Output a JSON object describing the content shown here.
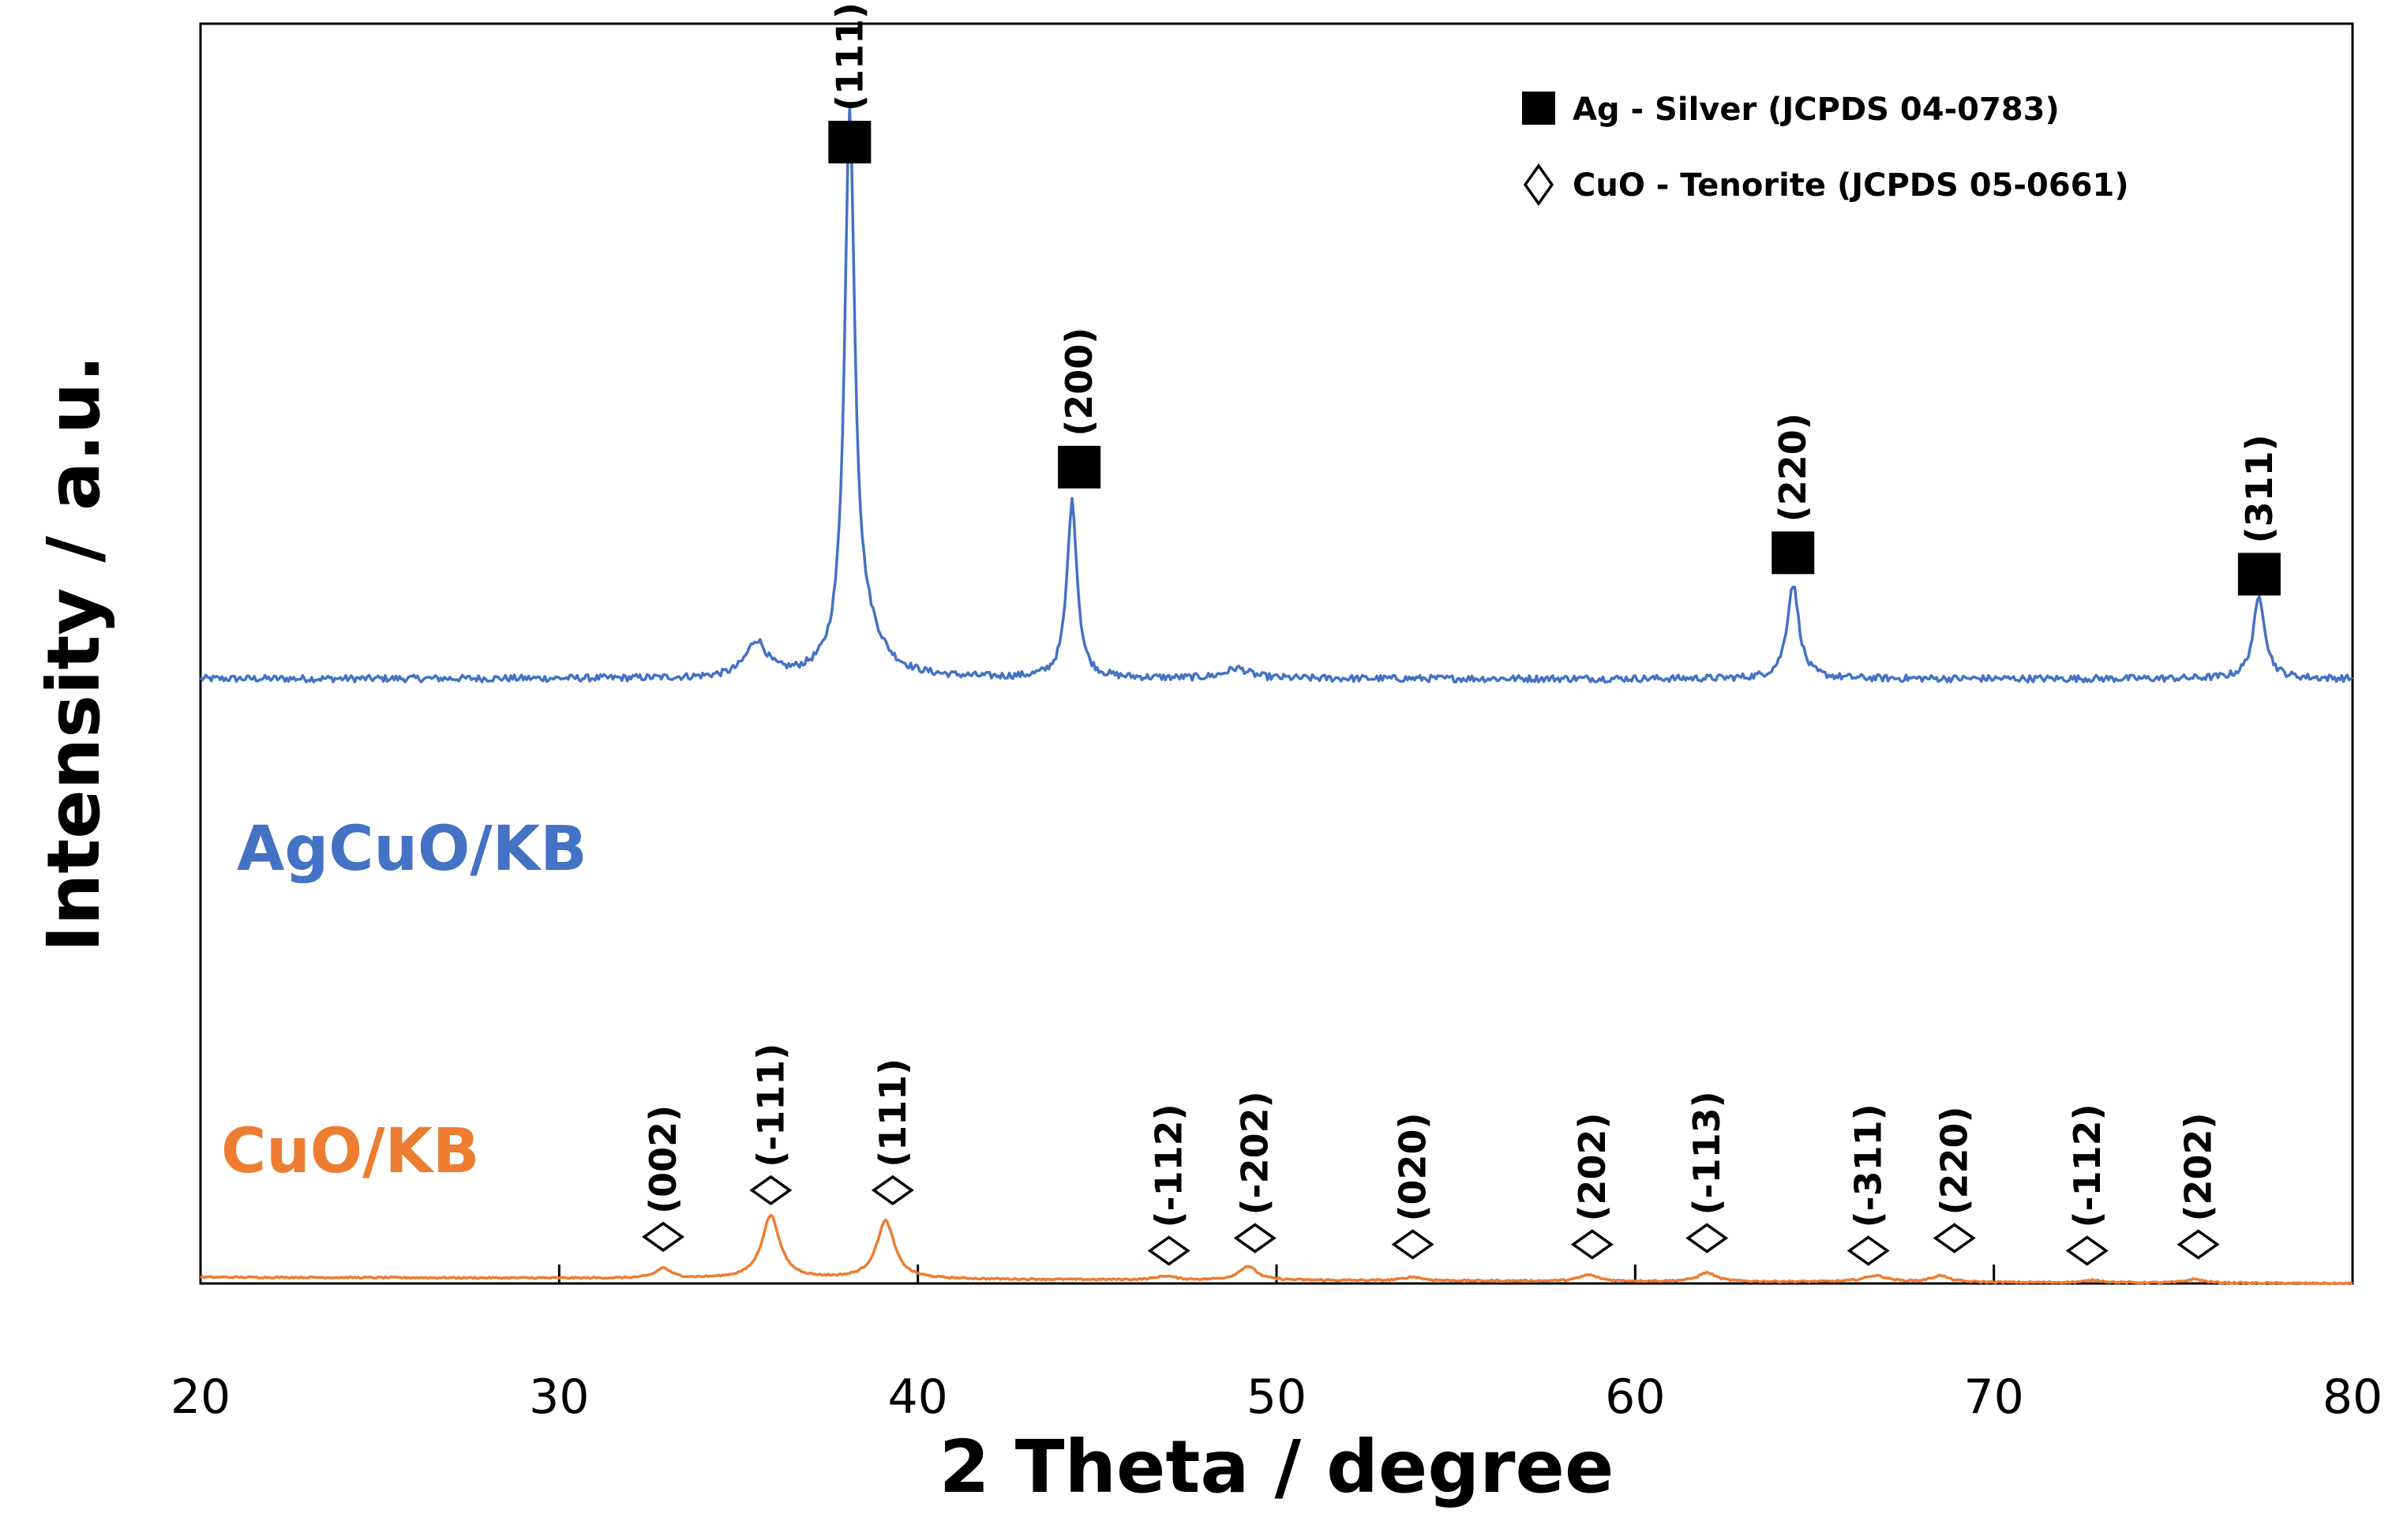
{
  "chart_data": {
    "type": "line",
    "title": "",
    "xlabel": "2 Theta / degree",
    "ylabel": "Intensity / a.u.",
    "xlim": [
      20,
      80
    ],
    "xticks": [
      20,
      30,
      40,
      50,
      60,
      70,
      80
    ],
    "yticks": [],
    "ylim": [
      0,
      100
    ],
    "grid": false,
    "legend_position": "top-right",
    "legend": [
      {
        "marker": "square",
        "label": "Ag - Silver (JCPDS 04-0783)"
      },
      {
        "marker": "diamond",
        "label": "CuO - Tenorite (JCPDS 05-0661)"
      }
    ],
    "colors": {
      "ag_series": "#4472C4",
      "cu_series": "#ED7D31",
      "axis": "#000000"
    },
    "series": [
      {
        "name": "AgCuO/KB",
        "color": "#4472C4",
        "baseline": 48,
        "peaks": [
          {
            "x": 35.5,
            "height": 2.8,
            "width": 0.35
          },
          {
            "x": 38.1,
            "height": 43,
            "width": 0.17
          },
          {
            "x": 38.5,
            "height": 3.2,
            "width": 0.6
          },
          {
            "x": 44.3,
            "height": 14,
            "width": 0.17
          },
          {
            "x": 48.9,
            "height": 0.8,
            "width": 0.4
          },
          {
            "x": 64.4,
            "height": 7.5,
            "width": 0.2
          },
          {
            "x": 77.4,
            "height": 6.5,
            "width": 0.2
          }
        ],
        "annotations": [
          {
            "x": 38.1,
            "label": "(111)",
            "phase": "Ag",
            "marker": "square",
            "level": 90.6
          },
          {
            "x": 44.5,
            "label": "(200)",
            "phase": "Ag",
            "marker": "square",
            "level": 64.8
          },
          {
            "x": 64.4,
            "label": "(220)",
            "phase": "Ag",
            "marker": "square",
            "level": 58
          },
          {
            "x": 77.4,
            "label": "(311)",
            "phase": "Ag",
            "marker": "square",
            "level": 56.3
          }
        ]
      },
      {
        "name": "CuO/KB",
        "color": "#ED7D31",
        "baseline": 0.5,
        "peaks": [
          {
            "x": 32.9,
            "height": 0.8,
            "width": 0.25
          },
          {
            "x": 35.9,
            "height": 5,
            "width": 0.3
          },
          {
            "x": 39.1,
            "height": 4.6,
            "width": 0.3
          },
          {
            "x": 46.9,
            "height": 0.3,
            "width": 0.3
          },
          {
            "x": 49.2,
            "height": 1.1,
            "width": 0.3
          },
          {
            "x": 53.8,
            "height": 0.3,
            "width": 0.3
          },
          {
            "x": 58.7,
            "height": 0.5,
            "width": 0.3
          },
          {
            "x": 62.0,
            "height": 0.7,
            "width": 0.3
          },
          {
            "x": 66.7,
            "height": 0.5,
            "width": 0.4
          },
          {
            "x": 68.5,
            "height": 0.5,
            "width": 0.3
          },
          {
            "x": 72.8,
            "height": 0.2,
            "width": 0.3
          },
          {
            "x": 75.6,
            "height": 0.3,
            "width": 0.3
          }
        ],
        "annotations": [
          {
            "x": 32.9,
            "label": "(002)",
            "phase": "CuO",
            "marker": "diamond",
            "level": 3.7
          },
          {
            "x": 35.9,
            "label": "(-111)",
            "phase": "CuO",
            "marker": "diamond",
            "level": 7.4
          },
          {
            "x": 39.3,
            "label": "(111)",
            "phase": "CuO",
            "marker": "diamond",
            "level": 7.4
          },
          {
            "x": 47.0,
            "label": "(-112)",
            "phase": "CuO",
            "marker": "diamond",
            "level": 2.6
          },
          {
            "x": 49.4,
            "label": "(-202)",
            "phase": "CuO",
            "marker": "diamond",
            "level": 3.6
          },
          {
            "x": 53.8,
            "label": "(020)",
            "phase": "CuO",
            "marker": "diamond",
            "level": 3.1
          },
          {
            "x": 58.8,
            "label": "(202)",
            "phase": "CuO",
            "marker": "diamond",
            "level": 3.1
          },
          {
            "x": 62.0,
            "label": "(-113)",
            "phase": "CuO",
            "marker": "diamond",
            "level": 3.6
          },
          {
            "x": 66.5,
            "label": "(-311)",
            "phase": "CuO",
            "marker": "diamond",
            "level": 2.6
          },
          {
            "x": 68.9,
            "label": "(220)",
            "phase": "CuO",
            "marker": "diamond",
            "level": 3.6
          },
          {
            "x": 72.6,
            "label": "(-112)",
            "phase": "CuO",
            "marker": "diamond",
            "level": 2.6
          },
          {
            "x": 75.7,
            "label": "(202)",
            "phase": "CuO",
            "marker": "diamond",
            "level": 3.1
          }
        ]
      }
    ]
  }
}
